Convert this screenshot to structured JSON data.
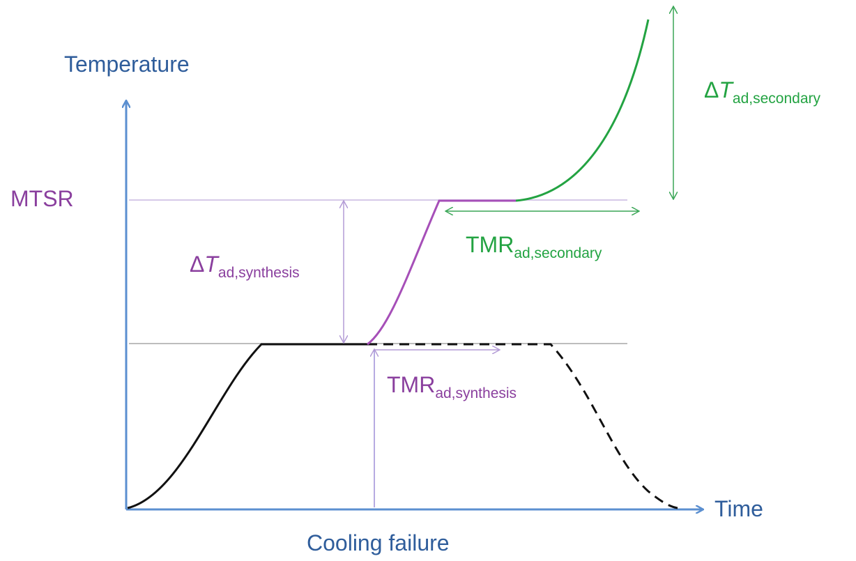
{
  "axes": {
    "y_label": "Temperature",
    "x_label": "Time"
  },
  "levels": {
    "mtsr": "MTSR"
  },
  "events": {
    "cooling_failure": "Cooling failure"
  },
  "annotations": [
    {
      "prefix": "Δ",
      "base": "T",
      "subscript": "ad,synthesis"
    },
    {
      "base": "TMR",
      "subscript": "ad,synthesis"
    },
    {
      "base": "TMR",
      "subscript": "ad,secondary"
    },
    {
      "prefix": "Δ",
      "base": "T",
      "subscript": "ad,secondary"
    }
  ]
}
